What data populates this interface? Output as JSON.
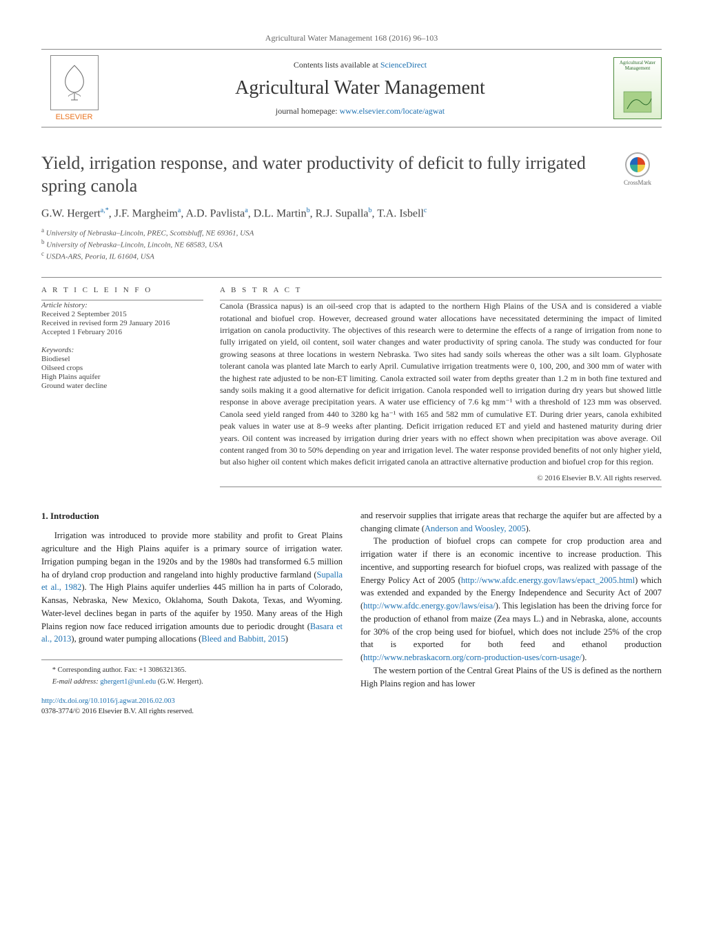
{
  "masthead": {
    "journal_line": "Agricultural Water Management 168 (2016) 96–103",
    "lists_available_prefix": "Contents lists available at ",
    "lists_available_link": "ScienceDirect",
    "journal_name": "Agricultural Water Management",
    "homepage_prefix": "journal homepage: ",
    "homepage_url": "www.elsevier.com/locate/agwat",
    "publisher": "ELSEVIER",
    "cover_title": "Agricultural Water Management"
  },
  "crossmark_label": "CrossMark",
  "title": "Yield, irrigation response, and water productivity of deficit to fully irrigated spring canola",
  "authors_html": "G.W. Hergert",
  "authors": [
    {
      "name": "G.W. Hergert",
      "sup": "a,*"
    },
    {
      "name": "J.F. Margheim",
      "sup": "a"
    },
    {
      "name": "A.D. Pavlista",
      "sup": "a"
    },
    {
      "name": "D.L. Martin",
      "sup": "b"
    },
    {
      "name": "R.J. Supalla",
      "sup": "b"
    },
    {
      "name": "T.A. Isbell",
      "sup": "c"
    }
  ],
  "affiliations": [
    {
      "sup": "a",
      "text": "University of Nebraska–Lincoln, PREC, Scottsbluff, NE 69361, USA"
    },
    {
      "sup": "b",
      "text": "University of Nebraska–Lincoln, Lincoln, NE 68583, USA"
    },
    {
      "sup": "c",
      "text": "USDA-ARS, Peoria, IL 61604, USA"
    }
  ],
  "article_info_head": "a r t i c l e   i n f o",
  "abstract_head": "a b s t r a c t",
  "history": {
    "head": "Article history:",
    "received": "Received 2 September 2015",
    "revised": "Received in revised form 29 January 2016",
    "accepted": "Accepted 1 February 2016"
  },
  "keywords": {
    "head": "Keywords:",
    "items": [
      "Biodiesel",
      "Oilseed crops",
      "High Plains aquifer",
      "Ground water decline"
    ]
  },
  "abstract": "Canola (Brassica napus) is an oil-seed crop that is adapted to the northern High Plains of the USA and is considered a viable rotational and biofuel crop. However, decreased ground water allocations have necessitated determining the impact of limited irrigation on canola productivity. The objectives of this research were to determine the effects of a range of irrigation from none to fully irrigated on yield, oil content, soil water changes and water productivity of spring canola. The study was conducted for four growing seasons at three locations in western Nebraska. Two sites had sandy soils whereas the other was a silt loam. Glyphosate tolerant canola was planted late March to early April. Cumulative irrigation treatments were 0, 100, 200, and 300 mm of water with the highest rate adjusted to be non-ET limiting. Canola extracted soil water from depths greater than 1.2 m in both fine textured and sandy soils making it a good alternative for deficit irrigation. Canola responded well to irrigation during dry years but showed little response in above average precipitation years. A water use efficiency of 7.6 kg mm⁻¹ with a threshold of 123 mm was observed. Canola seed yield ranged from 440 to 3280 kg ha⁻¹ with 165 and 582 mm of cumulative ET. During drier years, canola exhibited peak values in water use at 8–9 weeks after planting. Deficit irrigation reduced ET and yield and hastened maturity during drier years. Oil content was increased by irrigation during drier years with no effect shown when precipitation was above average. Oil content ranged from 30 to 50% depending on year and irrigation level. The water response provided benefits of not only higher yield, but also higher oil content which makes deficit irrigated canola an attractive alternative production and biofuel crop for this region.",
  "copyright": "© 2016 Elsevier B.V. All rights reserved.",
  "section1_head": "1. Introduction",
  "col1": {
    "p1_pre": "Irrigation was introduced to provide more stability and profit to Great Plains agriculture and the High Plains aquifer is a primary source of irrigation water. Irrigation pumping began in the 1920s and by the 1980s had transformed 6.5 million ha of dryland crop production and rangeland into highly productive farmland (",
    "p1_link1": "Supalla et al., 1982",
    "p1_mid1": "). The High Plains aquifer underlies 445 million ha in parts of Colorado, Kansas, Nebraska, New Mexico, Oklahoma, South Dakota, Texas, and Wyoming. Water-level declines began in parts of the aquifer by 1950. Many areas of the High Plains region now face reduced irrigation amounts due to periodic drought (",
    "p1_link2": "Basara et al., 2013",
    "p1_mid2": "), ground water pumping allocations (",
    "p1_link3": "Bleed and Babbitt, 2015",
    "p1_post": ")"
  },
  "col2": {
    "p1_pre": "and reservoir supplies that irrigate areas that recharge the aquifer but are affected by a changing climate (",
    "p1_link1": "Anderson and Woosley, 2005",
    "p1_post": ").",
    "p2_pre": "The production of biofuel crops can compete for crop production area and irrigation water if there is an economic incentive to increase production. This incentive, and supporting research for biofuel crops, was realized with passage of the Energy Policy Act of 2005 (",
    "p2_link1": "http://www.afdc.energy.gov/laws/epact_2005.html",
    "p2_mid1": ") which was extended and expanded by the Energy Independence and Security Act of 2007 (",
    "p2_link2": "http://www.afdc.energy.gov/laws/eisa/",
    "p2_mid2": "). This legislation has been the driving force for the production of ethanol from maize (Zea mays L.) and in Nebraska, alone, accounts for 30% of the crop being used for biofuel, which does not include 25% of the crop that is exported for both feed and ethanol production (",
    "p2_link3": "http://www.nebraskacorn.org/corn-production-uses/corn-usage/",
    "p2_post": ").",
    "p3": "The western portion of the Central Great Plains of the US is defined as the northern High Plains region and has lower"
  },
  "footer": {
    "corr_label": "* Corresponding author. Fax: +1 3086321365.",
    "email_label": "E-mail address: ",
    "email": "ghergert1@unl.edu",
    "email_who": " (G.W. Hergert).",
    "doi": "http://dx.doi.org/10.1016/j.agwat.2016.02.003",
    "issn_line": "0378-3774/© 2016 Elsevier B.V. All rights reserved."
  }
}
